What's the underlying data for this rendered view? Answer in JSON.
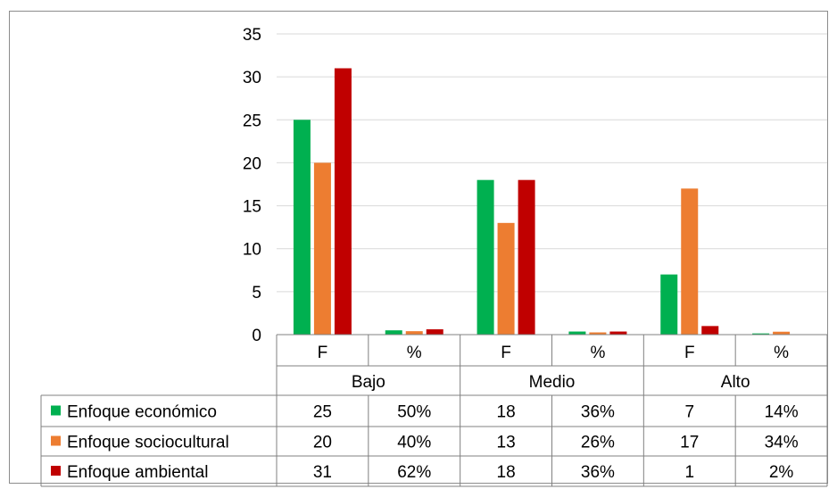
{
  "chart_data": {
    "type": "bar",
    "groups": [
      "Bajo",
      "Medio",
      "Alto"
    ],
    "subcategories": [
      "F",
      "%"
    ],
    "categories": [
      "Bajo F",
      "Bajo %",
      "Medio F",
      "Medio %",
      "Alto F",
      "Alto %"
    ],
    "ylim": [
      0,
      35
    ],
    "yticks": [
      0,
      5,
      10,
      15,
      20,
      25,
      30,
      35
    ],
    "grid": true,
    "legend": "table-left",
    "series": [
      {
        "name": "Enfoque económico",
        "color": "#00b050",
        "values": [
          25,
          0.5,
          18,
          0.36,
          7,
          0.14
        ],
        "table_values": [
          "25",
          "50%",
          "18",
          "36%",
          "7",
          "14%"
        ]
      },
      {
        "name": "Enfoque sociocultural",
        "color": "#ed7d31",
        "values": [
          20,
          0.4,
          13,
          0.26,
          17,
          0.34
        ],
        "table_values": [
          "20",
          "40%",
          "13",
          "26%",
          "17",
          "34%"
        ]
      },
      {
        "name": "Enfoque ambiental",
        "color": "#c00000",
        "values": [
          31,
          0.62,
          18,
          0.36,
          1,
          0.02
        ],
        "table_values": [
          "31",
          "62%",
          "18",
          "36%",
          "1",
          "2%"
        ]
      }
    ]
  }
}
